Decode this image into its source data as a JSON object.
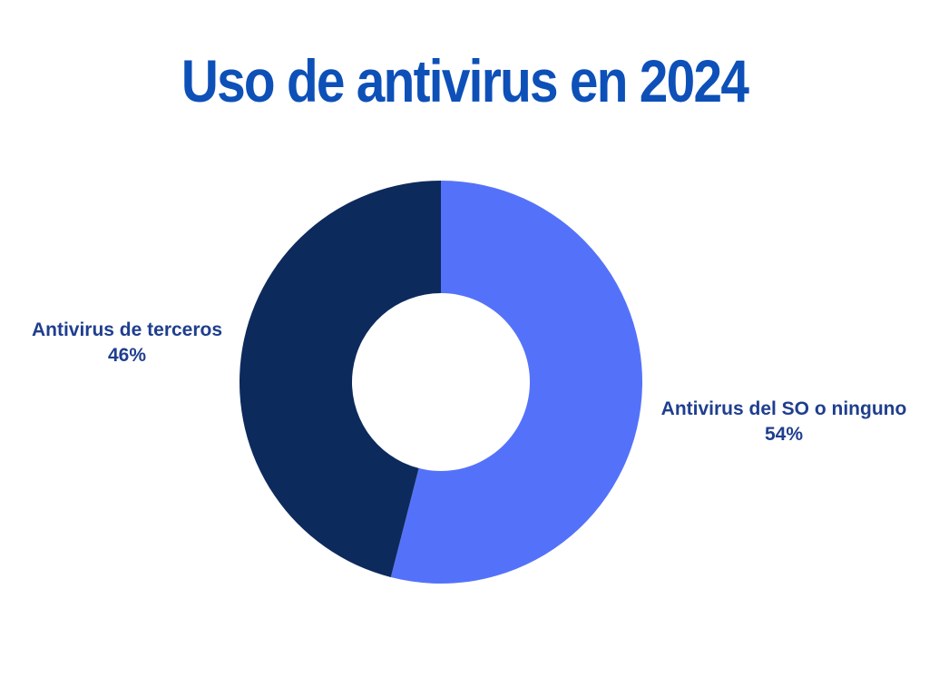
{
  "page": {
    "background": "#ffffff"
  },
  "title": {
    "text": "Uso de antivirus en 2024",
    "color": "#0d50b8"
  },
  "chart_data": {
    "type": "pie",
    "variant": "donut",
    "title": "Uso de antivirus en 2024",
    "start_angle_deg": 0,
    "direction": "clockwise",
    "inner_radius_ratio": 0.44,
    "legend_position": "none",
    "labels_color": "#1f3e8e",
    "slices": [
      {
        "label": "Antivirus del SO o ninguno",
        "value": 54,
        "pct_label": "54%",
        "color": "#5472f9",
        "label_side": "right"
      },
      {
        "label": "Antivirus de terceros",
        "value": 46,
        "pct_label": "46%",
        "color": "#0d2a5c",
        "label_side": "left"
      }
    ]
  }
}
